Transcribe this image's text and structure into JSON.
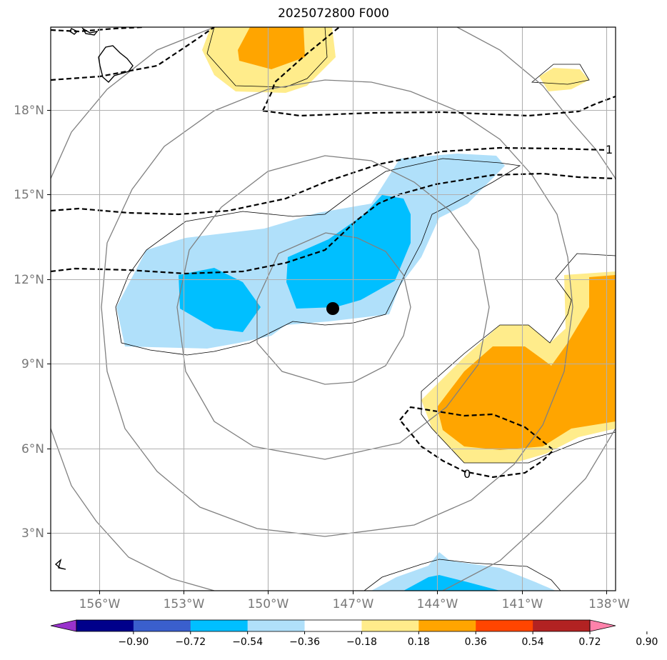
{
  "title": "2025072800 F000",
  "map": {
    "lon_range": [
      -158,
      -137.75
    ],
    "lat_range": [
      1,
      20.9
    ],
    "lon_ticks": [
      {
        "value": -156,
        "label": "156°W"
      },
      {
        "value": -153,
        "label": "153°W"
      },
      {
        "value": -150,
        "label": "150°W"
      },
      {
        "value": -147,
        "label": "147°W"
      },
      {
        "value": -144,
        "label": "144°W"
      },
      {
        "value": -141,
        "label": "141°W"
      },
      {
        "value": -138,
        "label": "138°W"
      }
    ],
    "lat_ticks": [
      {
        "value": 3,
        "label": "3°N"
      },
      {
        "value": 6,
        "label": "6°N"
      },
      {
        "value": 9,
        "label": "9°N"
      },
      {
        "value": 12,
        "label": "12°N"
      },
      {
        "value": 15,
        "label": "15°N"
      },
      {
        "value": 18,
        "label": "18°N"
      }
    ],
    "grid": true,
    "storm_center": {
      "lon": -147.9,
      "lat": 10.9
    },
    "contour_labels": [
      {
        "text": "1",
        "lon": -138,
        "lat": 16.6
      },
      {
        "text": "0",
        "lon": -142.9,
        "lat": 5.3
      }
    ]
  },
  "colorbar": {
    "ticks": [
      "−0.90",
      "−0.72",
      "−0.54",
      "−0.36",
      "−0.18",
      "0.18",
      "0.36",
      "0.54",
      "0.72",
      "0.90"
    ],
    "colors": [
      "#9932cc",
      "#00008b",
      "#3a5fcd",
      "#00bfff",
      "#b0e0fa",
      "#ffffff",
      "#ffec8b",
      "#ffa500",
      "#ff4500",
      "#b22222",
      "#ff82ab"
    ],
    "extend": "both"
  }
}
